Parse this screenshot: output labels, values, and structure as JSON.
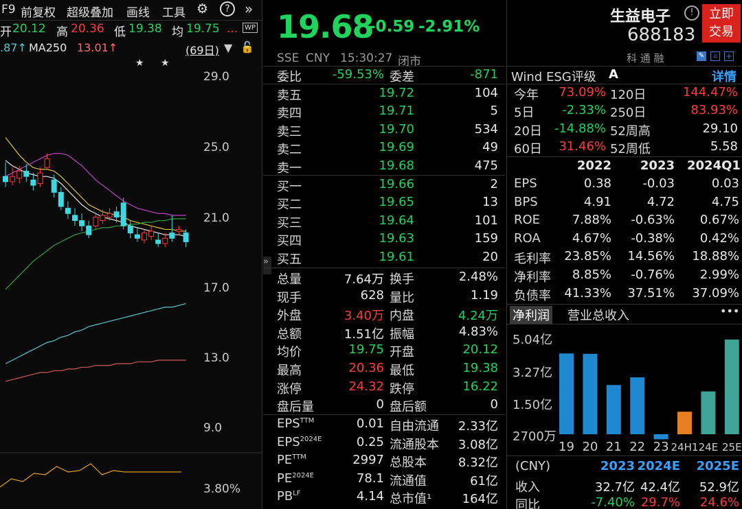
{
  "toolbar": {
    "f9": "F9",
    "adjust": "前复权",
    "overlay": "超级叠加",
    "draw": "画线",
    "tools": "工具",
    "more": "»"
  },
  "ohlc": {
    "open_label": "开",
    "open": "20.12",
    "high_label": "高",
    "high": "20.36",
    "low_label": "低",
    "low": "19.38",
    "avg_label": "均",
    "avg": "19.75",
    "ellipsis": "...",
    "wp": "WP"
  },
  "ma": {
    "prefix": ".87↑",
    "ma250_label": "MA250",
    "ma250": "13.01↑",
    "period": "(69日)"
  },
  "chart_data": {
    "type": "candlestick",
    "y_ticks": [
      "29.0",
      "25.0",
      "21.0",
      "17.0",
      "13.0",
      "9.0"
    ],
    "indicator_tick": "3.80%",
    "candles": [
      {
        "o": 23.4,
        "c": 23.1,
        "h": 24.2,
        "l": 22.8
      },
      {
        "o": 23.1,
        "c": 23.4,
        "h": 23.9,
        "l": 22.9
      },
      {
        "o": 23.3,
        "c": 23.7,
        "h": 24.0,
        "l": 23.0
      },
      {
        "o": 23.7,
        "c": 23.4,
        "h": 24.1,
        "l": 23.1
      },
      {
        "o": 23.2,
        "c": 22.9,
        "h": 23.6,
        "l": 22.6
      },
      {
        "o": 23.0,
        "c": 23.6,
        "h": 23.9,
        "l": 22.8
      },
      {
        "o": 23.9,
        "c": 24.4,
        "h": 24.7,
        "l": 23.8
      },
      {
        "o": 23.2,
        "c": 22.5,
        "h": 23.5,
        "l": 22.2
      },
      {
        "o": 22.5,
        "c": 21.7,
        "h": 22.8,
        "l": 21.5
      },
      {
        "o": 21.6,
        "c": 21.3,
        "h": 22.0,
        "l": 21.0
      },
      {
        "o": 21.2,
        "c": 20.9,
        "h": 21.6,
        "l": 20.6
      },
      {
        "o": 20.9,
        "c": 20.6,
        "h": 21.3,
        "l": 20.3
      },
      {
        "o": 20.6,
        "c": 20.1,
        "h": 20.9,
        "l": 19.9
      },
      {
        "o": 20.6,
        "c": 21.1,
        "h": 21.3,
        "l": 20.4
      },
      {
        "o": 20.9,
        "c": 21.2,
        "h": 21.5,
        "l": 20.7
      },
      {
        "o": 21.1,
        "c": 21.3,
        "h": 21.6,
        "l": 20.9
      },
      {
        "o": 21.4,
        "c": 21.1,
        "h": 21.7,
        "l": 20.8
      },
      {
        "o": 21.9,
        "c": 20.6,
        "h": 22.2,
        "l": 20.4
      },
      {
        "o": 20.6,
        "c": 20.2,
        "h": 20.9,
        "l": 19.9
      },
      {
        "o": 20.1,
        "c": 19.9,
        "h": 20.5,
        "l": 19.7
      },
      {
        "o": 19.8,
        "c": 20.2,
        "h": 20.4,
        "l": 19.6
      },
      {
        "o": 20.0,
        "c": 20.3,
        "h": 20.6,
        "l": 19.8
      },
      {
        "o": 19.8,
        "c": 19.6,
        "h": 20.2,
        "l": 19.4
      },
      {
        "o": 19.6,
        "c": 19.9,
        "h": 20.2,
        "l": 19.4
      },
      {
        "o": 20.2,
        "c": 19.9,
        "h": 21.2,
        "l": 19.7
      },
      {
        "o": 20.3,
        "c": 20.4,
        "h": 20.6,
        "l": 20.1
      },
      {
        "o": 20.2,
        "c": 19.7,
        "h": 20.4,
        "l": 19.4
      }
    ],
    "ma_series": [
      {
        "color": "#e8e8e8",
        "values": [
          24.3,
          24.0,
          23.8,
          23.6,
          23.5,
          23.4,
          23.4,
          23.3,
          23.0,
          22.6,
          22.2,
          21.8,
          21.5,
          21.3,
          21.1,
          21.0,
          20.9,
          20.8,
          20.6,
          20.5,
          20.4,
          20.3,
          20.2,
          20.1,
          20.1,
          20.1,
          20.0
        ]
      },
      {
        "color": "#e0c23a",
        "values": [
          25.6,
          25.1,
          24.6,
          24.2,
          23.9,
          23.8,
          23.8,
          23.7,
          23.4,
          23.0,
          22.6,
          22.2,
          21.8,
          21.6,
          21.4,
          21.3,
          21.2,
          21.1,
          20.9,
          20.8,
          20.7,
          20.6,
          20.5,
          20.4,
          20.4,
          20.3,
          20.3
        ]
      },
      {
        "color": "#c040c8",
        "values": [
          23.4,
          23.6,
          23.8,
          24.0,
          24.2,
          24.4,
          24.6,
          24.7,
          24.7,
          24.6,
          24.3,
          24.0,
          23.6,
          23.2,
          22.9,
          22.6,
          22.3,
          22.0,
          21.8,
          21.6,
          21.5,
          21.4,
          21.3,
          21.3,
          21.2,
          21.2,
          21.2
        ]
      },
      {
        "color": "#2fa13a",
        "values": [
          17.0,
          17.4,
          17.8,
          18.2,
          18.6,
          18.9,
          19.2,
          19.5,
          19.7,
          19.9,
          20.1,
          20.2,
          20.3,
          20.4,
          20.5,
          20.5,
          20.6,
          20.6,
          20.7,
          20.7,
          20.8,
          20.8,
          20.9,
          20.9,
          21.0,
          21.0,
          21.0
        ]
      },
      {
        "color": "#58c8d0",
        "values": [
          12.8,
          13.0,
          13.2,
          13.4,
          13.6,
          13.8,
          14.0,
          14.1,
          14.3,
          14.4,
          14.6,
          14.7,
          14.9,
          15.0,
          15.1,
          15.2,
          15.3,
          15.4,
          15.5,
          15.6,
          15.7,
          15.8,
          15.9,
          16.0,
          16.0,
          16.1,
          16.2
        ]
      },
      {
        "color": "#d05a5a",
        "values": [
          11.8,
          11.9,
          12.0,
          12.1,
          12.2,
          12.3,
          12.3,
          12.4,
          12.4,
          12.5,
          12.5,
          12.6,
          12.6,
          12.7,
          12.7,
          12.7,
          12.8,
          12.8,
          12.8,
          12.9,
          12.9,
          12.9,
          13.0,
          13.0,
          13.0,
          13.0,
          13.0
        ]
      }
    ]
  },
  "quote": {
    "price": "19.68",
    "change": "-0.59",
    "pct": "-2.91%",
    "exchange": "SSE",
    "currency": "CNY",
    "time": "15:30:27",
    "status": "闭市",
    "name": "生益电子",
    "code": "688183",
    "trade_btn_line1": "立即",
    "trade_btn_line2": "交易",
    "tags": "科 通 融"
  },
  "orderbook": {
    "wb_label": "委比",
    "wb": "-59.53%",
    "wc_label": "委差",
    "wc": "-871",
    "asks": [
      {
        "label": "卖五",
        "price": "19.72",
        "vol": "104"
      },
      {
        "label": "卖四",
        "price": "19.71",
        "vol": "5"
      },
      {
        "label": "卖三",
        "price": "19.70",
        "vol": "534"
      },
      {
        "label": "卖二",
        "price": "19.69",
        "vol": "49"
      },
      {
        "label": "卖一",
        "price": "19.68",
        "vol": "475"
      }
    ],
    "bids": [
      {
        "label": "买一",
        "price": "19.66",
        "vol": "2"
      },
      {
        "label": "买二",
        "price": "19.65",
        "vol": "13"
      },
      {
        "label": "买三",
        "price": "19.64",
        "vol": "101"
      },
      {
        "label": "买四",
        "price": "19.63",
        "vol": "159"
      },
      {
        "label": "买五",
        "price": "19.61",
        "vol": "20"
      }
    ]
  },
  "stats": [
    {
      "l1": "总量",
      "v1": "7.64万",
      "c1": "white",
      "l2": "换手",
      "v2": "2.48%",
      "c2": "white"
    },
    {
      "l1": "现手",
      "v1": "628",
      "c1": "white",
      "l2": "量比",
      "v2": "1.19",
      "c2": "white"
    },
    {
      "l1": "外盘",
      "v1": "3.40万",
      "c1": "red",
      "l2": "内盘",
      "v2": "4.24万",
      "c2": "green"
    },
    {
      "l1": "总额",
      "v1": "1.51亿",
      "c1": "white",
      "l2": "振幅",
      "v2": "4.83%",
      "c2": "white"
    },
    {
      "l1": "均价",
      "v1": "19.75",
      "c1": "green",
      "l2": "开盘",
      "v2": "20.12",
      "c2": "green"
    },
    {
      "l1": "最高",
      "v1": "20.36",
      "c1": "red",
      "l2": "最低",
      "v2": "19.38",
      "c2": "green"
    },
    {
      "l1": "涨停",
      "v1": "24.32",
      "c1": "red",
      "l2": "跌停",
      "v2": "16.22",
      "c2": "green"
    },
    {
      "l1": "盘后量",
      "v1": "0",
      "c1": "white",
      "l2": "盘后额",
      "v2": "0",
      "c2": "white"
    }
  ],
  "valuation": [
    {
      "l1": "EPS",
      "s1": "TTM",
      "v1": "0.01",
      "l2": "自由流通",
      "v2": "2.33亿"
    },
    {
      "l1": "EPS",
      "s1": "2024E",
      "v1": "0.25",
      "l2": "流通股本",
      "v2": "3.08亿"
    },
    {
      "l1": "PE",
      "s1": "TTM",
      "v1": "2997",
      "l2": "总股本",
      "v2": "8.32亿"
    },
    {
      "l1": "PE",
      "s1": "2024E",
      "v1": "78.1",
      "l2": "流通值",
      "v2": "61亿"
    },
    {
      "l1": "PB",
      "s1": "LF",
      "v1": "4.14",
      "l2": "总市值¹",
      "v2": "164亿"
    }
  ],
  "esg": {
    "label": "Wind ESG评级",
    "grade": "A",
    "detail": "详情"
  },
  "perf": [
    {
      "l1": "今年",
      "v1": "73.09%",
      "c1": "red",
      "l2": "120日",
      "v2": "144.47%",
      "c2": "red"
    },
    {
      "l1": "5日",
      "v1": "-2.33%",
      "c1": "green",
      "l2": "250日",
      "v2": "83.93%",
      "c2": "red"
    },
    {
      "l1": "20日",
      "v1": "-14.88%",
      "c1": "green",
      "l2": "52周高",
      "v2": "29.10",
      "c2": "white"
    },
    {
      "l1": "60日",
      "v1": "31.46%",
      "c1": "red",
      "l2": "52周低",
      "v2": "5.58",
      "c2": "white"
    }
  ],
  "fin": {
    "headers": [
      "2022",
      "2023",
      "2024Q1"
    ],
    "rows": [
      {
        "label": "EPS",
        "vals": [
          "0.38",
          "-0.03",
          "0.03"
        ]
      },
      {
        "label": "BPS",
        "vals": [
          "4.91",
          "4.72",
          "4.75"
        ]
      },
      {
        "label": "ROE",
        "vals": [
          "7.88%",
          "-0.63%",
          "0.67%"
        ]
      },
      {
        "label": "ROA",
        "vals": [
          "4.67%",
          "-0.38%",
          "0.42%"
        ]
      },
      {
        "label": "毛利率",
        "vals": [
          "23.85%",
          "14.56%",
          "18.88%"
        ]
      },
      {
        "label": "净利率",
        "vals": [
          "8.85%",
          "-0.76%",
          "2.99%"
        ]
      },
      {
        "label": "负债率",
        "vals": [
          "41.33%",
          "37.51%",
          "37.09%"
        ]
      }
    ]
  },
  "tabs": {
    "net_profit": "净利润",
    "revenue": "营业总收入",
    "more": "•••"
  },
  "bars": {
    "y_ticks": [
      "5.04亿",
      "3.27亿",
      "1.50亿",
      "2700万"
    ],
    "labels": [
      "19",
      "20",
      "21",
      "22",
      "23",
      "24H1",
      "24E",
      "25E"
    ],
    "values": [
      4.3,
      4.28,
      2.62,
      3.03,
      -0.27,
      1.2,
      2.28,
      5.04
    ],
    "colors": [
      "#1e88d0",
      "#1e88d0",
      "#1e88d0",
      "#1e88d0",
      "#1e88d0",
      "#e67e22",
      "#3fa39a",
      "#3fa39a"
    ]
  },
  "forecast": {
    "currency": "(CNY)",
    "years": [
      "2023",
      "2024E",
      "2025E"
    ],
    "rev_label": "收入",
    "rev": [
      "32.7亿",
      "42.4亿",
      "52.9亿"
    ],
    "yoy_label": "同比",
    "yoy": [
      "-7.40%",
      "29.7%",
      "24.6%"
    ]
  }
}
